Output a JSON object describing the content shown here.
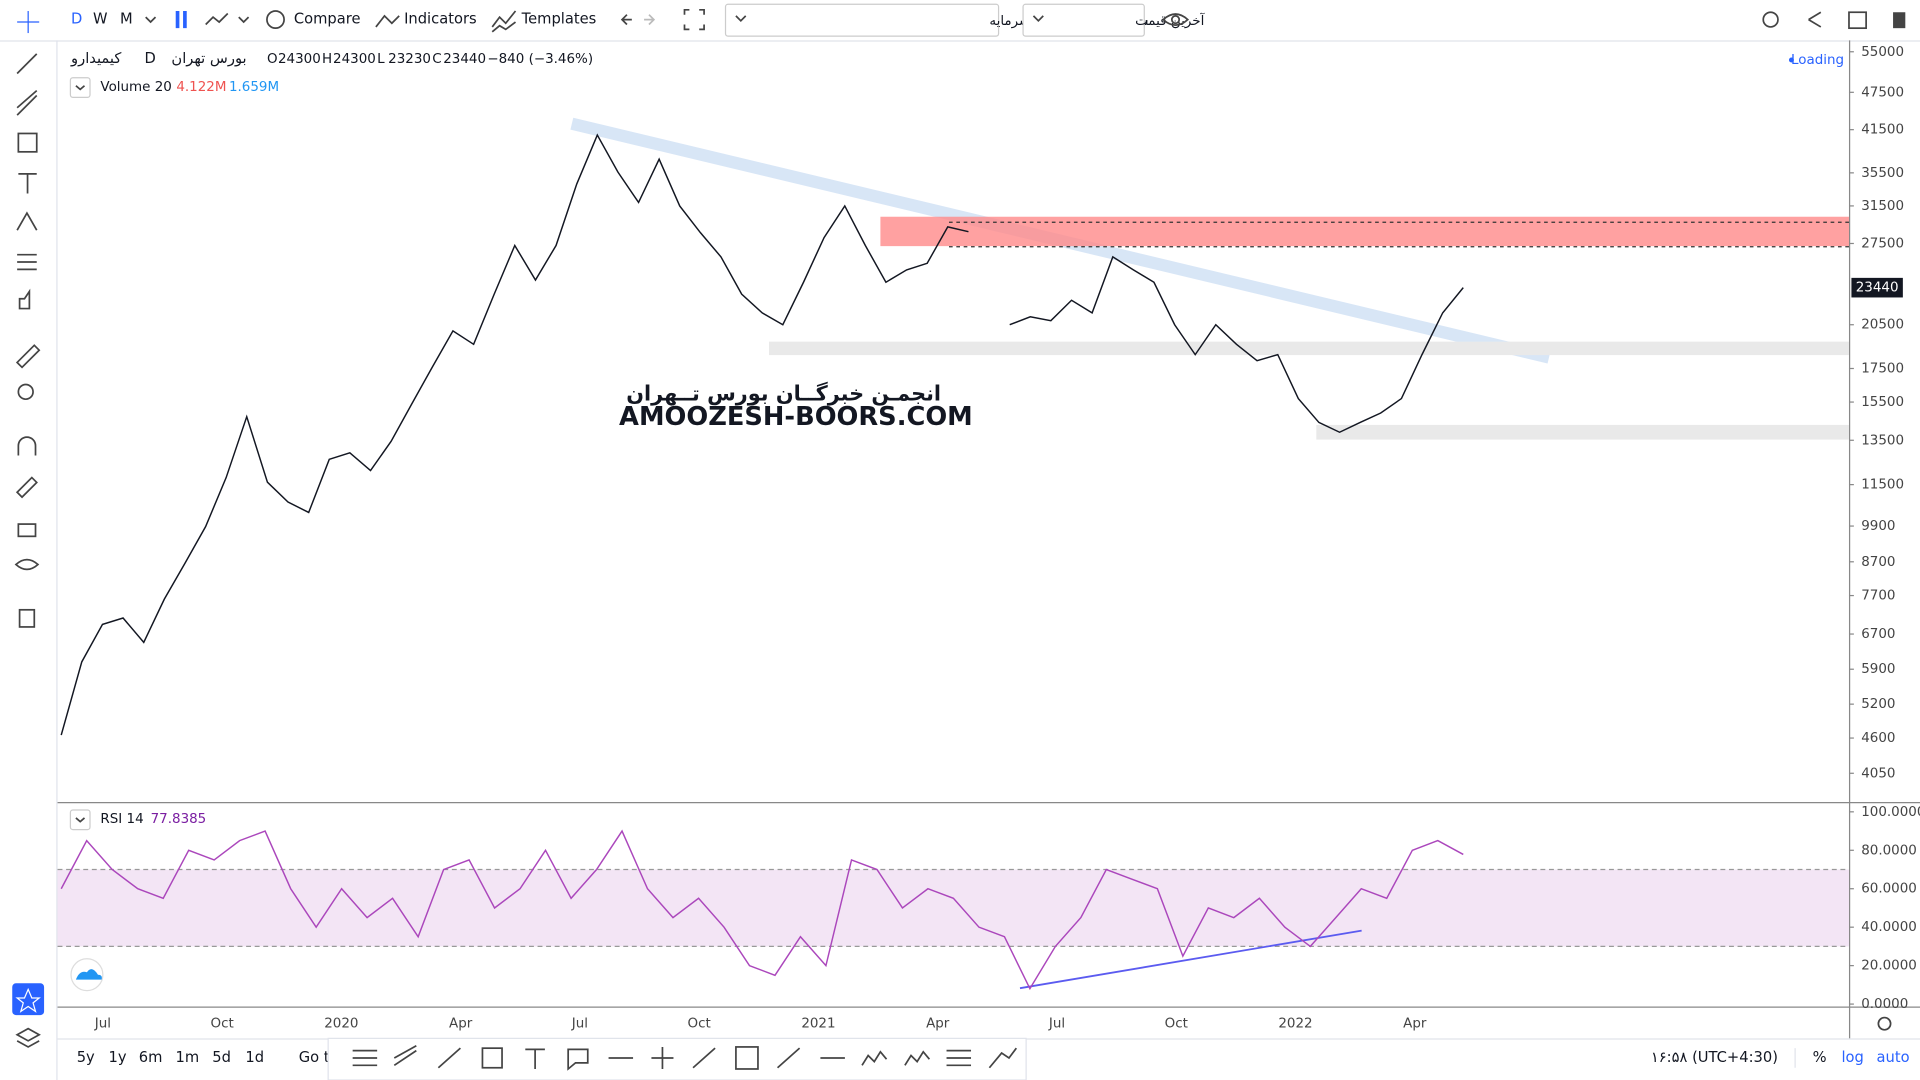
{
  "toolbar": {
    "intervals": [
      "D",
      "W",
      "M"
    ],
    "compare": "Compare",
    "indicators": "Indicators",
    "templates": "Templates",
    "adjustment": "سود نقدی و افزایش سرمایه",
    "price_source": "آخرین قیمت"
  },
  "legend": {
    "symbol": "کیمیدارو",
    "interval": "D",
    "exchange": "بورس تهران",
    "ohlc": [
      {
        "label": "O",
        "value": 24300
      },
      {
        "label": "H",
        "value": 24300
      },
      {
        "label": "L",
        "value": 23230
      },
      {
        "label": "C",
        "value": 23440
      }
    ],
    "change": "−840 (−3.46%)",
    "volume_name": "Volume 20",
    "volume": {
      "value": 4122000,
      "label": "4.122M"
    },
    "volume_ma": {
      "value": 1659000,
      "label": "1.659M"
    },
    "loading": "Loading"
  },
  "watermark": {
    "fa": "انجمـن خبرگــان بورس تــهران",
    "en": "AMOOZESH-BOORS.COM"
  },
  "chart_data": [
    {
      "type": "line",
      "color": "#131722",
      "log": true,
      "values": [
        4650,
        6060,
        6940,
        7100,
        6500,
        7600,
        8650,
        9880,
        11800,
        14700,
        11600,
        10800,
        10400,
        12600,
        12900,
        12100,
        13450,
        15400,
        17600,
        20050,
        19100,
        22900,
        27300,
        24100,
        27300,
        34100,
        40700,
        35600,
        31900,
        37300,
        31500,
        28600,
        26200,
        22900,
        21400,
        20500,
        23900,
        28100,
        31500,
        27300,
        23900,
        25000,
        25600,
        29200,
        28700,
        null,
        20500,
        21100,
        20800,
        22400,
        21400,
        26200,
        25000,
        23900,
        20500,
        18400,
        20500,
        19100,
        18000,
        18400,
        15700,
        14400,
        13900,
        14400,
        14900,
        15700,
        18400,
        21400,
        23440
      ],
      "last_value": 23440,
      "last_color": "#131722",
      "ylim": [
        3650,
        56800
      ],
      "yticks": [
        55000,
        47500,
        41500,
        35500,
        31500,
        27500,
        20500,
        17500,
        15500,
        13500,
        11500,
        9900,
        8700,
        7700,
        6700,
        5900,
        5200,
        4600,
        4050
      ],
      "xtick_labels": [
        "Jul",
        "Oct",
        "2020",
        "Apr",
        "Jul",
        "Oct",
        "2021",
        "Apr",
        "Jul",
        "Oct",
        "2022",
        "Apr"
      ]
    },
    {
      "type": "line",
      "name": "RSI 14",
      "color": "#ab47bc",
      "band": [
        30,
        70
      ],
      "band_color": "#f3e5f5",
      "values": [
        60,
        85,
        70,
        60,
        55,
        80,
        75,
        85,
        90,
        60,
        40,
        60,
        45,
        55,
        35,
        70,
        75,
        50,
        60,
        80,
        55,
        70,
        90,
        60,
        45,
        55,
        40,
        20,
        15,
        35,
        20,
        75,
        70,
        50,
        60,
        55,
        40,
        35,
        8,
        30,
        45,
        70,
        65,
        60,
        25,
        50,
        45,
        55,
        40,
        30,
        45,
        60,
        55,
        80,
        85,
        77.8385
      ],
      "last_value": 77.8385,
      "ylim": [
        0,
        100
      ],
      "yticks": [
        {
          "value": 100,
          "label": "100.0000"
        },
        {
          "value": 80,
          "label": "80.0000"
        },
        {
          "value": 60,
          "label": "60.0000"
        },
        {
          "value": 40,
          "label": "40.0000"
        },
        {
          "value": 20,
          "label": "20.0000"
        },
        {
          "value": 0,
          "label": "0.0000"
        }
      ]
    }
  ],
  "bottom": {
    "ranges": [
      "5y",
      "1y",
      "6m",
      "1m",
      "5d",
      "1d"
    ],
    "goto": "Go to",
    "time": "۱۶:۵۸ (UTC+4:30)",
    "percent": "%",
    "log": "log",
    "auto": "auto"
  }
}
